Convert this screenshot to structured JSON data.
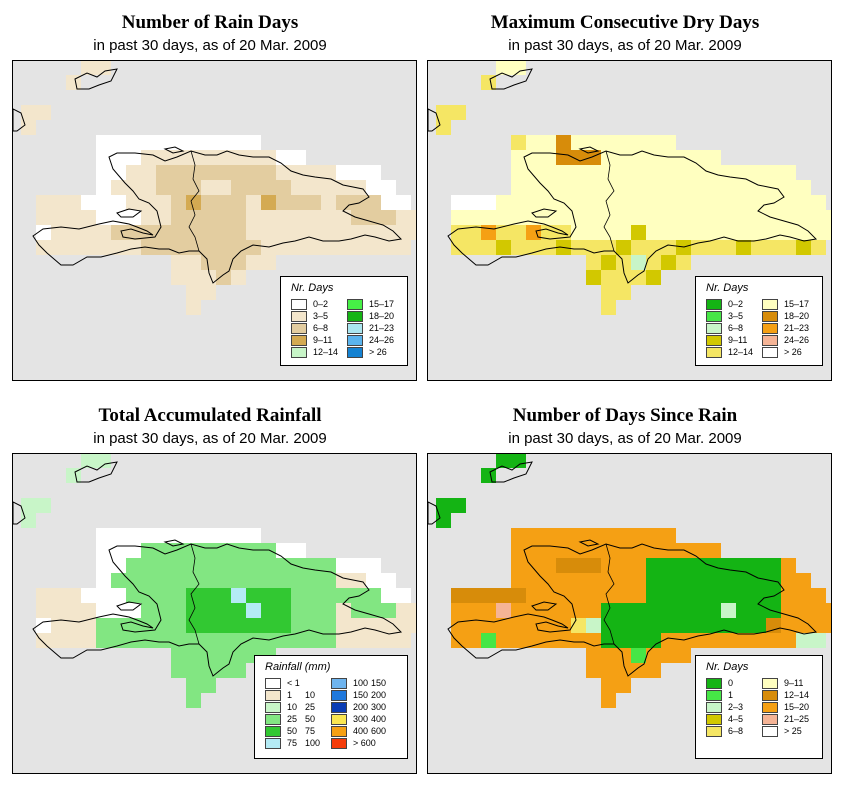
{
  "panels": [
    {
      "title": "Number of Rain Days",
      "subtitle": "in past 30 days, as of  20 Mar. 2009",
      "legend": {
        "title": "Nr. Days",
        "items": [
          {
            "label": "0–2",
            "color": "#ffffff"
          },
          {
            "label": "3–5",
            "color": "#f3e6cc"
          },
          {
            "label": "6–8",
            "color": "#e3cda0"
          },
          {
            "label": "9–11",
            "color": "#d4aa52"
          },
          {
            "label": "12–14",
            "color": "#c8f5c8"
          },
          {
            "label": "15–17",
            "color": "#46f046"
          },
          {
            "label": "18–20",
            "color": "#14b414"
          },
          {
            "label": "21–23",
            "color": "#aae6f0"
          },
          {
            "label": "24–26",
            "color": "#5ab4ee"
          },
          {
            "label": "> 26",
            "color": "#1482d2"
          }
        ]
      },
      "cells": [
        "0",
        "3–5",
        "6–8",
        "9–11"
      ]
    },
    {
      "title": "Maximum Consecutive Dry Days",
      "subtitle": "in past 30 days, as of  20 Mar. 2009",
      "legend": {
        "title": "Nr. Days",
        "items": [
          {
            "label": "0–2",
            "color": "#14b414"
          },
          {
            "label": "3–5",
            "color": "#46e646"
          },
          {
            "label": "6–8",
            "color": "#c8f5c8"
          },
          {
            "label": "9–11",
            "color": "#d2c800"
          },
          {
            "label": "12–14",
            "color": "#f5e664"
          },
          {
            "label": "15–17",
            "color": "#ffffc0"
          },
          {
            "label": "18–20",
            "color": "#d78c0a"
          },
          {
            "label": "21–23",
            "color": "#f5a014"
          },
          {
            "label": "24–26",
            "color": "#f5b496"
          },
          {
            "label": "> 26",
            "color": "#ffffff"
          }
        ]
      }
    },
    {
      "title": "Total Accumulated Rainfall",
      "subtitle": "in past 30 days, as of  20 Mar. 2009",
      "legend": {
        "title": "Rainfall (mm)",
        "items": [
          {
            "label": "< 1",
            "hi": "",
            "color": "#ffffff"
          },
          {
            "label": "1",
            "hi": "10",
            "color": "#f3e6cc"
          },
          {
            "label": "10",
            "hi": "25",
            "color": "#c8f5c8"
          },
          {
            "label": "25",
            "hi": "50",
            "color": "#82e682"
          },
          {
            "label": "50",
            "hi": "75",
            "color": "#32c832"
          },
          {
            "label": "75",
            "hi": "100",
            "color": "#b4ebf5"
          },
          {
            "label": "100",
            "hi": "150",
            "color": "#6eb4ee"
          },
          {
            "label": "150",
            "hi": "200",
            "color": "#1e78dc"
          },
          {
            "label": "200",
            "hi": "300",
            "color": "#0a3cb4"
          },
          {
            "label": "300",
            "hi": "400",
            "color": "#fae650"
          },
          {
            "label": "400",
            "hi": "600",
            "color": "#f5a014"
          },
          {
            "label": "> 600",
            "hi": "",
            "color": "#f53c0a"
          }
        ]
      }
    },
    {
      "title": "Number of Days Since Rain",
      "subtitle": "in past 30 days, as of  20 Mar. 2009",
      "legend": {
        "title": "Nr. Days",
        "items": [
          {
            "label": "0",
            "color": "#14b414"
          },
          {
            "label": "1",
            "color": "#46e646"
          },
          {
            "label": "2–3",
            "color": "#c8f5c8"
          },
          {
            "label": "4–5",
            "color": "#d2c800"
          },
          {
            "label": "6–8",
            "color": "#f5e664"
          },
          {
            "label": "9–11",
            "color": "#ffffc0"
          },
          {
            "label": "12–14",
            "color": "#d78c0a"
          },
          {
            "label": "15–20",
            "color": "#f5a014"
          },
          {
            "label": "21–25",
            "color": "#f5b496"
          },
          {
            "label": "> 25",
            "color": "#ffffff"
          }
        ]
      }
    }
  ]
}
